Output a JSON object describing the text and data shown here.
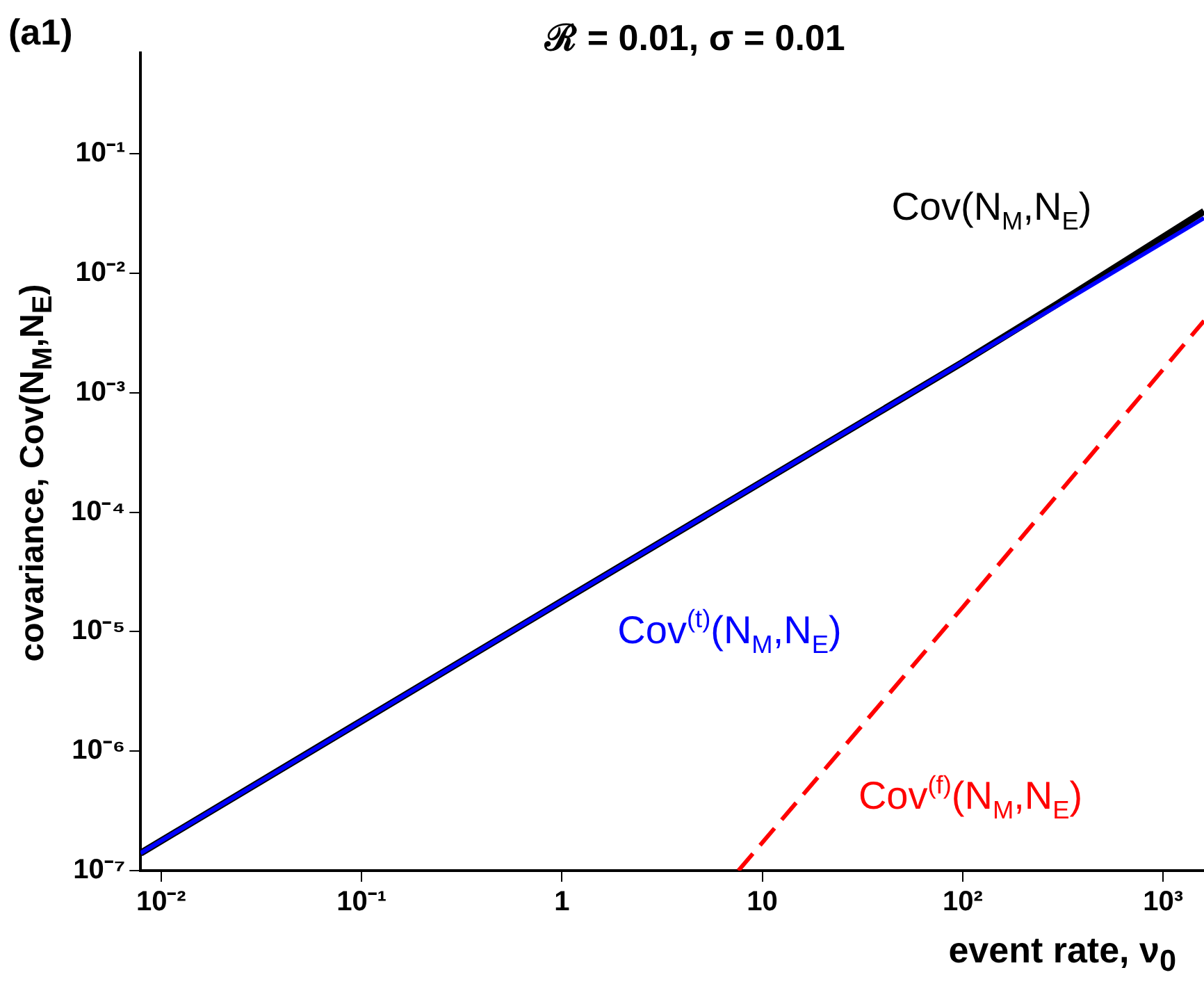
{
  "chart_data": {
    "type": "line",
    "title": "ℛ = 0.01, σ = 0.01",
    "annotations": [
      "(a1)"
    ],
    "xlabel": "event rate, ν$_{0}$",
    "ylabel": "covariance, Cov(N$_{M}$,N$_{E}$)",
    "log": "xy",
    "xlim": [
      0.0079,
      1600
    ],
    "ylim": [
      1e-07,
      0.7
    ],
    "xticks": [
      {
        "value": 0.01,
        "label": "10⁻²"
      },
      {
        "value": 0.1,
        "label": "10⁻¹"
      },
      1,
      10,
      {
        "value": 100,
        "label": "10²"
      },
      {
        "value": 1000,
        "label": "10³"
      }
    ],
    "yticks": [
      {
        "value": 1e-07,
        "label": "10⁻⁷"
      },
      {
        "value": 1e-06,
        "label": "10⁻⁶"
      },
      {
        "value": 1e-05,
        "label": "10⁻⁵"
      },
      {
        "value": 0.0001,
        "label": "10⁻⁴"
      },
      {
        "value": 0.001,
        "label": "10⁻³"
      },
      {
        "value": 0.01,
        "label": "10⁻²"
      },
      {
        "value": 0.1,
        "label": "10⁻¹"
      }
    ],
    "grid": false,
    "legend": false,
    "marker": "none",
    "series": [
      {
        "name": "Cov(N$_{M}$,N$_{E}$)",
        "color": "#000000",
        "line_style": "solid",
        "x": [
          0.0079,
          1,
          100,
          300,
          1600
        ],
        "values": [
          1.4e-07,
          1.8e-05,
          0.0018,
          0.0056,
          0.033
        ]
      },
      {
        "name": "Cov$^{(t)}$(N$_{M}$,N$_{E}$)",
        "color": "#0000ff",
        "line_style": "solid",
        "x": [
          0.0079,
          1,
          100,
          1600
        ],
        "values": [
          1.4e-07,
          1.8e-05,
          0.0018,
          0.029
        ]
      },
      {
        "name": "Cov$^{(f)}$(N$_{M}$,N$_{E}$)",
        "color": "#ff0000",
        "line_style": "dashed",
        "x": [
          7.6,
          100,
          1600
        ],
        "values": [
          1e-07,
          1.6e-05,
          0.004
        ]
      }
    ]
  }
}
